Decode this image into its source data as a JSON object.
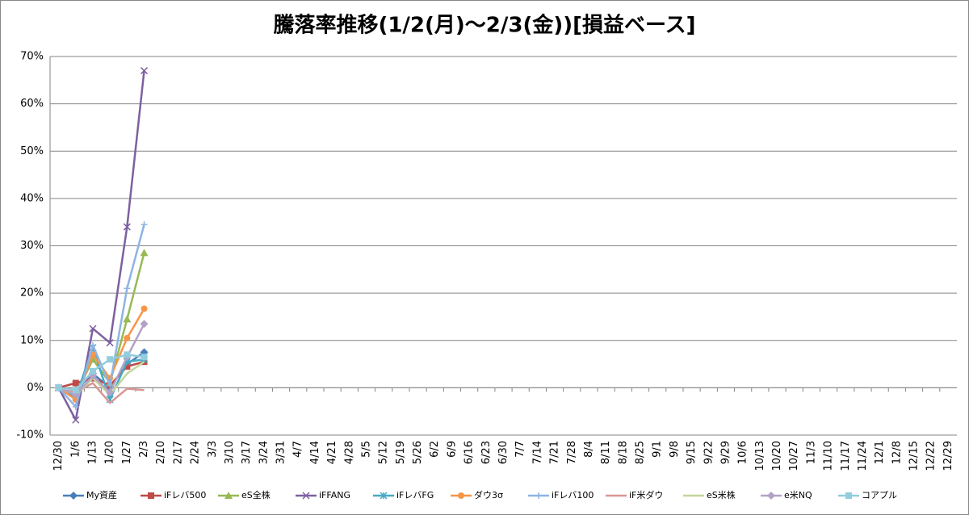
{
  "chart_data": {
    "type": "line",
    "title": "騰落率推移(1/2(月)～2/3(金))[損益ベース]",
    "categories": [
      "12/30",
      "1/6",
      "1/13",
      "1/20",
      "1/27",
      "2/3",
      "2/10",
      "2/17",
      "2/24",
      "3/3",
      "3/10",
      "3/17",
      "3/24",
      "3/31",
      "4/7",
      "4/14",
      "4/21",
      "4/28",
      "5/5",
      "5/12",
      "5/19",
      "5/26",
      "6/2",
      "6/9",
      "6/16",
      "6/23",
      "6/30",
      "7/7",
      "7/14",
      "7/21",
      "7/28",
      "8/4",
      "8/11",
      "8/18",
      "8/25",
      "9/1",
      "9/8",
      "9/15",
      "9/22",
      "9/29",
      "10/6",
      "10/13",
      "10/20",
      "10/27",
      "11/3",
      "11/10",
      "11/17",
      "11/24",
      "12/1",
      "12/8",
      "12/15",
      "12/22",
      "12/29"
    ],
    "series": [
      {
        "name": "My資産",
        "color": "#4a7ebb",
        "marker": "diamond",
        "values": [
          0,
          -0.5,
          3,
          0,
          5,
          7.5,
          null,
          null,
          null,
          null,
          null,
          null,
          null,
          null,
          null,
          null,
          null,
          null,
          null,
          null,
          null,
          null,
          null,
          null,
          null,
          null,
          null,
          null,
          null,
          null,
          null,
          null,
          null,
          null,
          null,
          null,
          null,
          null,
          null,
          null,
          null,
          null,
          null,
          null,
          null,
          null,
          null,
          null,
          null,
          null,
          null,
          null,
          null
        ]
      },
      {
        "name": "iFレバ500",
        "color": "#be4b48",
        "marker": "square",
        "values": [
          0,
          1,
          2,
          0.5,
          4.5,
          5.5,
          null,
          null,
          null,
          null,
          null,
          null,
          null,
          null,
          null,
          null,
          null,
          null,
          null,
          null,
          null,
          null,
          null,
          null,
          null,
          null,
          null,
          null,
          null,
          null,
          null,
          null,
          null,
          null,
          null,
          null,
          null,
          null,
          null,
          null,
          null,
          null,
          null,
          null,
          null,
          null,
          null,
          null,
          null,
          null,
          null,
          null,
          null
        ]
      },
      {
        "name": "eS全株",
        "color": "#98b954",
        "marker": "triangle",
        "values": [
          0,
          -1.5,
          6,
          1,
          14.5,
          28.5,
          null,
          null,
          null,
          null,
          null,
          null,
          null,
          null,
          null,
          null,
          null,
          null,
          null,
          null,
          null,
          null,
          null,
          null,
          null,
          null,
          null,
          null,
          null,
          null,
          null,
          null,
          null,
          null,
          null,
          null,
          null,
          null,
          null,
          null,
          null,
          null,
          null,
          null,
          null,
          null,
          null,
          null,
          null,
          null,
          null,
          null,
          null
        ]
      },
      {
        "name": "iFFANG",
        "color": "#7d60a0",
        "marker": "x",
        "values": [
          0,
          -6.8,
          12.5,
          9.5,
          34,
          67,
          null,
          null,
          null,
          null,
          null,
          null,
          null,
          null,
          null,
          null,
          null,
          null,
          null,
          null,
          null,
          null,
          null,
          null,
          null,
          null,
          null,
          null,
          null,
          null,
          null,
          null,
          null,
          null,
          null,
          null,
          null,
          null,
          null,
          null,
          null,
          null,
          null,
          null,
          null,
          null,
          null,
          null,
          null,
          null,
          null,
          null,
          null
        ]
      },
      {
        "name": "iFレバFG",
        "color": "#46aac5",
        "marker": "star",
        "values": [
          0,
          -2,
          8.5,
          -2.5,
          5.5,
          6,
          null,
          null,
          null,
          null,
          null,
          null,
          null,
          null,
          null,
          null,
          null,
          null,
          null,
          null,
          null,
          null,
          null,
          null,
          null,
          null,
          null,
          null,
          null,
          null,
          null,
          null,
          null,
          null,
          null,
          null,
          null,
          null,
          null,
          null,
          null,
          null,
          null,
          null,
          null,
          null,
          null,
          null,
          null,
          null,
          null,
          null,
          null
        ]
      },
      {
        "name": "ダウ3σ",
        "color": "#f79646",
        "marker": "circle",
        "values": [
          0,
          -2.5,
          7,
          2,
          10.5,
          16.7,
          null,
          null,
          null,
          null,
          null,
          null,
          null,
          null,
          null,
          null,
          null,
          null,
          null,
          null,
          null,
          null,
          null,
          null,
          null,
          null,
          null,
          null,
          null,
          null,
          null,
          null,
          null,
          null,
          null,
          null,
          null,
          null,
          null,
          null,
          null,
          null,
          null,
          null,
          null,
          null,
          null,
          null,
          null,
          null,
          null,
          null,
          null
        ]
      },
      {
        "name": "iFレバ100",
        "color": "#8eb4e3",
        "marker": "plus",
        "values": [
          0,
          -4,
          9,
          0.5,
          21,
          34.5,
          null,
          null,
          null,
          null,
          null,
          null,
          null,
          null,
          null,
          null,
          null,
          null,
          null,
          null,
          null,
          null,
          null,
          null,
          null,
          null,
          null,
          null,
          null,
          null,
          null,
          null,
          null,
          null,
          null,
          null,
          null,
          null,
          null,
          null,
          null,
          null,
          null,
          null,
          null,
          null,
          null,
          null,
          null,
          null,
          null,
          null,
          null
        ]
      },
      {
        "name": "iF米ダウ",
        "color": "#d99694",
        "marker": "none",
        "values": [
          0,
          -1,
          1,
          -3.2,
          -0.2,
          -0.5,
          null,
          null,
          null,
          null,
          null,
          null,
          null,
          null,
          null,
          null,
          null,
          null,
          null,
          null,
          null,
          null,
          null,
          null,
          null,
          null,
          null,
          null,
          null,
          null,
          null,
          null,
          null,
          null,
          null,
          null,
          null,
          null,
          null,
          null,
          null,
          null,
          null,
          null,
          null,
          null,
          null,
          null,
          null,
          null,
          null,
          null,
          null
        ]
      },
      {
        "name": "eS米株",
        "color": "#c3d69b",
        "marker": "none",
        "values": [
          0,
          -1.5,
          2,
          -1.5,
          3,
          5.5,
          null,
          null,
          null,
          null,
          null,
          null,
          null,
          null,
          null,
          null,
          null,
          null,
          null,
          null,
          null,
          null,
          null,
          null,
          null,
          null,
          null,
          null,
          null,
          null,
          null,
          null,
          null,
          null,
          null,
          null,
          null,
          null,
          null,
          null,
          null,
          null,
          null,
          null,
          null,
          null,
          null,
          null,
          null,
          null,
          null,
          null,
          null
        ]
      },
      {
        "name": "e米NQ",
        "color": "#b3a2c7",
        "marker": "diamond",
        "values": [
          0,
          -1.5,
          2.5,
          -1,
          6.5,
          13.5,
          null,
          null,
          null,
          null,
          null,
          null,
          null,
          null,
          null,
          null,
          null,
          null,
          null,
          null,
          null,
          null,
          null,
          null,
          null,
          null,
          null,
          null,
          null,
          null,
          null,
          null,
          null,
          null,
          null,
          null,
          null,
          null,
          null,
          null,
          null,
          null,
          null,
          null,
          null,
          null,
          null,
          null,
          null,
          null,
          null,
          null,
          null
        ]
      },
      {
        "name": "コアプル",
        "color": "#93cddd",
        "marker": "square",
        "values": [
          0,
          -0.5,
          3.5,
          6,
          7,
          6.5,
          null,
          null,
          null,
          null,
          null,
          null,
          null,
          null,
          null,
          null,
          null,
          null,
          null,
          null,
          null,
          null,
          null,
          null,
          null,
          null,
          null,
          null,
          null,
          null,
          null,
          null,
          null,
          null,
          null,
          null,
          null,
          null,
          null,
          null,
          null,
          null,
          null,
          null,
          null,
          null,
          null,
          null,
          null,
          null,
          null,
          null,
          null
        ]
      }
    ],
    "ylim": [
      -10,
      70
    ],
    "yticks": [
      {
        "value": -10,
        "label": "-10%"
      },
      {
        "value": 0,
        "label": "0%"
      },
      {
        "value": 10,
        "label": "10%"
      },
      {
        "value": 20,
        "label": "20%"
      },
      {
        "value": 30,
        "label": "30%"
      },
      {
        "value": 40,
        "label": "40%"
      },
      {
        "value": 50,
        "label": "50%"
      },
      {
        "value": 60,
        "label": "60%"
      },
      {
        "value": 70,
        "label": "70%"
      }
    ],
    "grid": true,
    "legend": "bottom"
  }
}
